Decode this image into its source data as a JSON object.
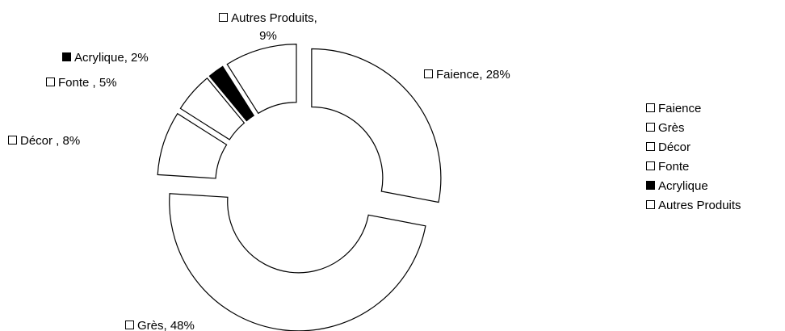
{
  "chart_data": {
    "type": "doughnut",
    "categories": [
      "Faience",
      "Grès",
      "Décor",
      "Fonte",
      "Acrylique",
      "Autres Produits"
    ],
    "values": [
      28,
      48,
      8,
      5,
      2,
      9
    ],
    "value_labels": [
      "Faience, 28%",
      "Grès, 48%",
      "Décor , 8%",
      "Fonte , 5%",
      "Acrylique, 2%",
      "Autres Produits, 9%"
    ],
    "colors": [
      "#ffffff",
      "#ffffff",
      "#ffffff",
      "#ffffff",
      "#000000",
      "#ffffff"
    ],
    "legend": "right"
  }
}
